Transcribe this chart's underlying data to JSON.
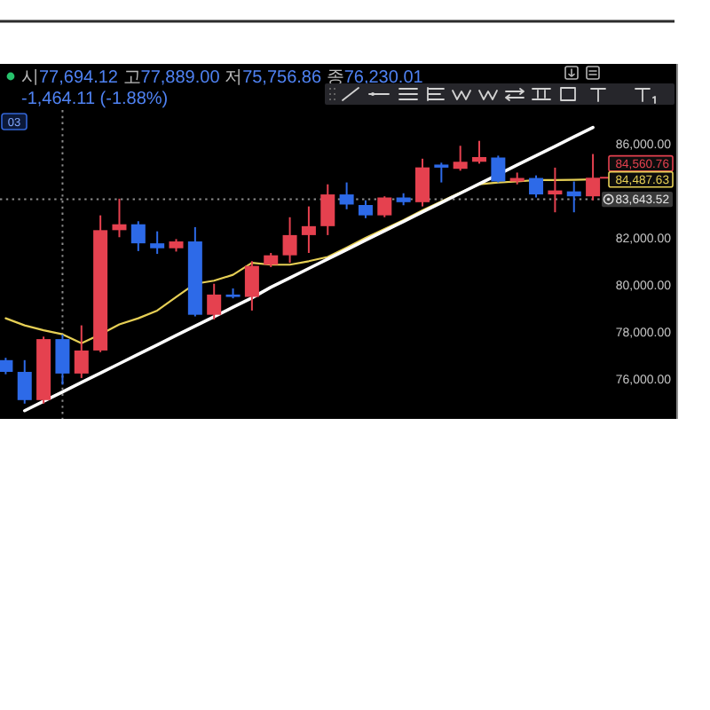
{
  "chart_data": {
    "type": "candlestick",
    "annotations": [
      "시77,694.12 고77,889.00 저75,756.86 종76,230.01 -1,464.11 (-1.88%)",
      "03"
    ],
    "categories": [
      null,
      null,
      null,
      null,
      null,
      null,
      null,
      null,
      null,
      null,
      null,
      null,
      null,
      null,
      null,
      null,
      null,
      null,
      null,
      null,
      null,
      null,
      null,
      null,
      null,
      null,
      null,
      null,
      null,
      null,
      null,
      null
    ],
    "ohlc": [
      [
        76800,
        76900,
        76200,
        76300
      ],
      [
        76300,
        76800,
        74950,
        75100
      ],
      [
        75100,
        77800,
        74950,
        77694.12
      ],
      [
        77694.12,
        77889.0,
        75756.86,
        76230.01
      ],
      [
        76230.01,
        78280,
        76040,
        77210
      ],
      [
        77210,
        82960,
        77140,
        82330
      ],
      [
        82330,
        83670,
        82030,
        82580
      ],
      [
        82580,
        82710,
        81440,
        81770
      ],
      [
        81770,
        82280,
        81320,
        81560
      ],
      [
        81560,
        81950,
        81420,
        81850
      ],
      [
        81850,
        82460,
        78660,
        78730
      ],
      [
        78730,
        80050,
        78530,
        79590
      ],
      [
        79590,
        79850,
        79430,
        79490
      ],
      [
        79490,
        81010,
        78910,
        80810
      ],
      [
        80860,
        81360,
        80760,
        81260
      ],
      [
        81260,
        82880,
        80940,
        82120
      ],
      [
        82120,
        83340,
        81360,
        82500
      ],
      [
        82500,
        84280,
        82120,
        83850
      ],
      [
        83850,
        84360,
        83220,
        83420
      ],
      [
        83400,
        83600,
        82840,
        82960
      ],
      [
        82960,
        83770,
        82880,
        83720
      ],
      [
        83720,
        83900,
        83390,
        83520
      ],
      [
        83520,
        85370,
        83340,
        85000
      ],
      [
        85120,
        85200,
        84360,
        84990
      ],
      [
        84940,
        85920,
        84860,
        85240
      ],
      [
        85240,
        86130,
        85160,
        85440
      ],
      [
        85420,
        85500,
        84360,
        84400
      ],
      [
        84400,
        84780,
        84280,
        84550
      ],
      [
        84550,
        84660,
        83720,
        83850
      ],
      [
        83850,
        84990,
        83090,
        84020
      ],
      [
        83980,
        84400,
        83090,
        83770
      ],
      [
        83770,
        85570,
        83600,
        84560.76
      ]
    ],
    "colors": [
      "#2d6ae8",
      "#2d6ae8",
      "#e5414f",
      "#2d6ae8",
      "#e5414f",
      "#e5414f",
      "#e5414f",
      "#2d6ae8",
      "#2d6ae8",
      "#e5414f",
      "#2d6ae8",
      "#e5414f",
      "#2d6ae8",
      "#e5414f",
      "#e5414f",
      "#e5414f",
      "#e5414f",
      "#e5414f",
      "#2d6ae8",
      "#2d6ae8",
      "#e5414f",
      "#2d6ae8",
      "#e5414f",
      "#2d6ae8",
      "#e5414f",
      "#e5414f",
      "#2d6ae8",
      "#e5414f",
      "#2d6ae8",
      "#e5414f",
      "#2d6ae8",
      "#e5414f"
    ],
    "series": [
      {
        "type": "line",
        "color": "#e6cf55",
        "values": [
          78580,
          78280,
          78070,
          77900,
          77520,
          77900,
          78320,
          78580,
          78910,
          79490,
          80050,
          80180,
          80430,
          80940,
          80860,
          80860,
          81010,
          81190,
          81590,
          82000,
          82380,
          82760,
          83170,
          83550,
          83930,
          84280,
          84360,
          84400,
          84460,
          84460,
          84470,
          84487.63
        ],
        "value_labels": [
          null,
          null,
          null,
          null,
          null,
          null,
          null,
          null,
          null,
          null,
          null,
          null,
          null,
          null,
          null,
          null,
          null,
          null,
          null,
          null,
          null,
          null,
          null,
          null,
          null,
          null,
          null,
          null,
          null,
          null,
          null,
          "84,487.63"
        ]
      },
      {
        "type": "line",
        "color": "#ffffff",
        "values": [
          null,
          74650,
          75050,
          75450,
          75850,
          76250,
          76650,
          77050,
          77450,
          77850,
          78250,
          78650,
          79050,
          79450,
          79900,
          80300,
          80700,
          81100,
          81500,
          81900,
          82300,
          82700,
          83100,
          83500,
          83900,
          84300,
          84700,
          85100,
          85500,
          85900,
          86300,
          86700
        ]
      }
    ],
    "ylim": [
      74300,
      87440
    ],
    "yticks": [
      {
        "value": 76000,
        "label": "76,000.00"
      },
      {
        "value": 78000,
        "label": "78,000.00"
      },
      {
        "value": 80000,
        "label": "80,000.00"
      },
      {
        "value": 82000,
        "label": "82,000.00"
      },
      {
        "value": 86000,
        "label": "86,000.00"
      }
    ],
    "tick_labels": "y",
    "ref_lines": [
      {
        "axis": "y",
        "value": 83643.52,
        "label": "83,643.52",
        "line_style": "dotted",
        "color": "#8c8c8c"
      },
      {
        "axis": "y",
        "value": 84560.76,
        "label": "84,560.76",
        "line_style": "solid",
        "color": "#e5414f"
      }
    ]
  }
}
